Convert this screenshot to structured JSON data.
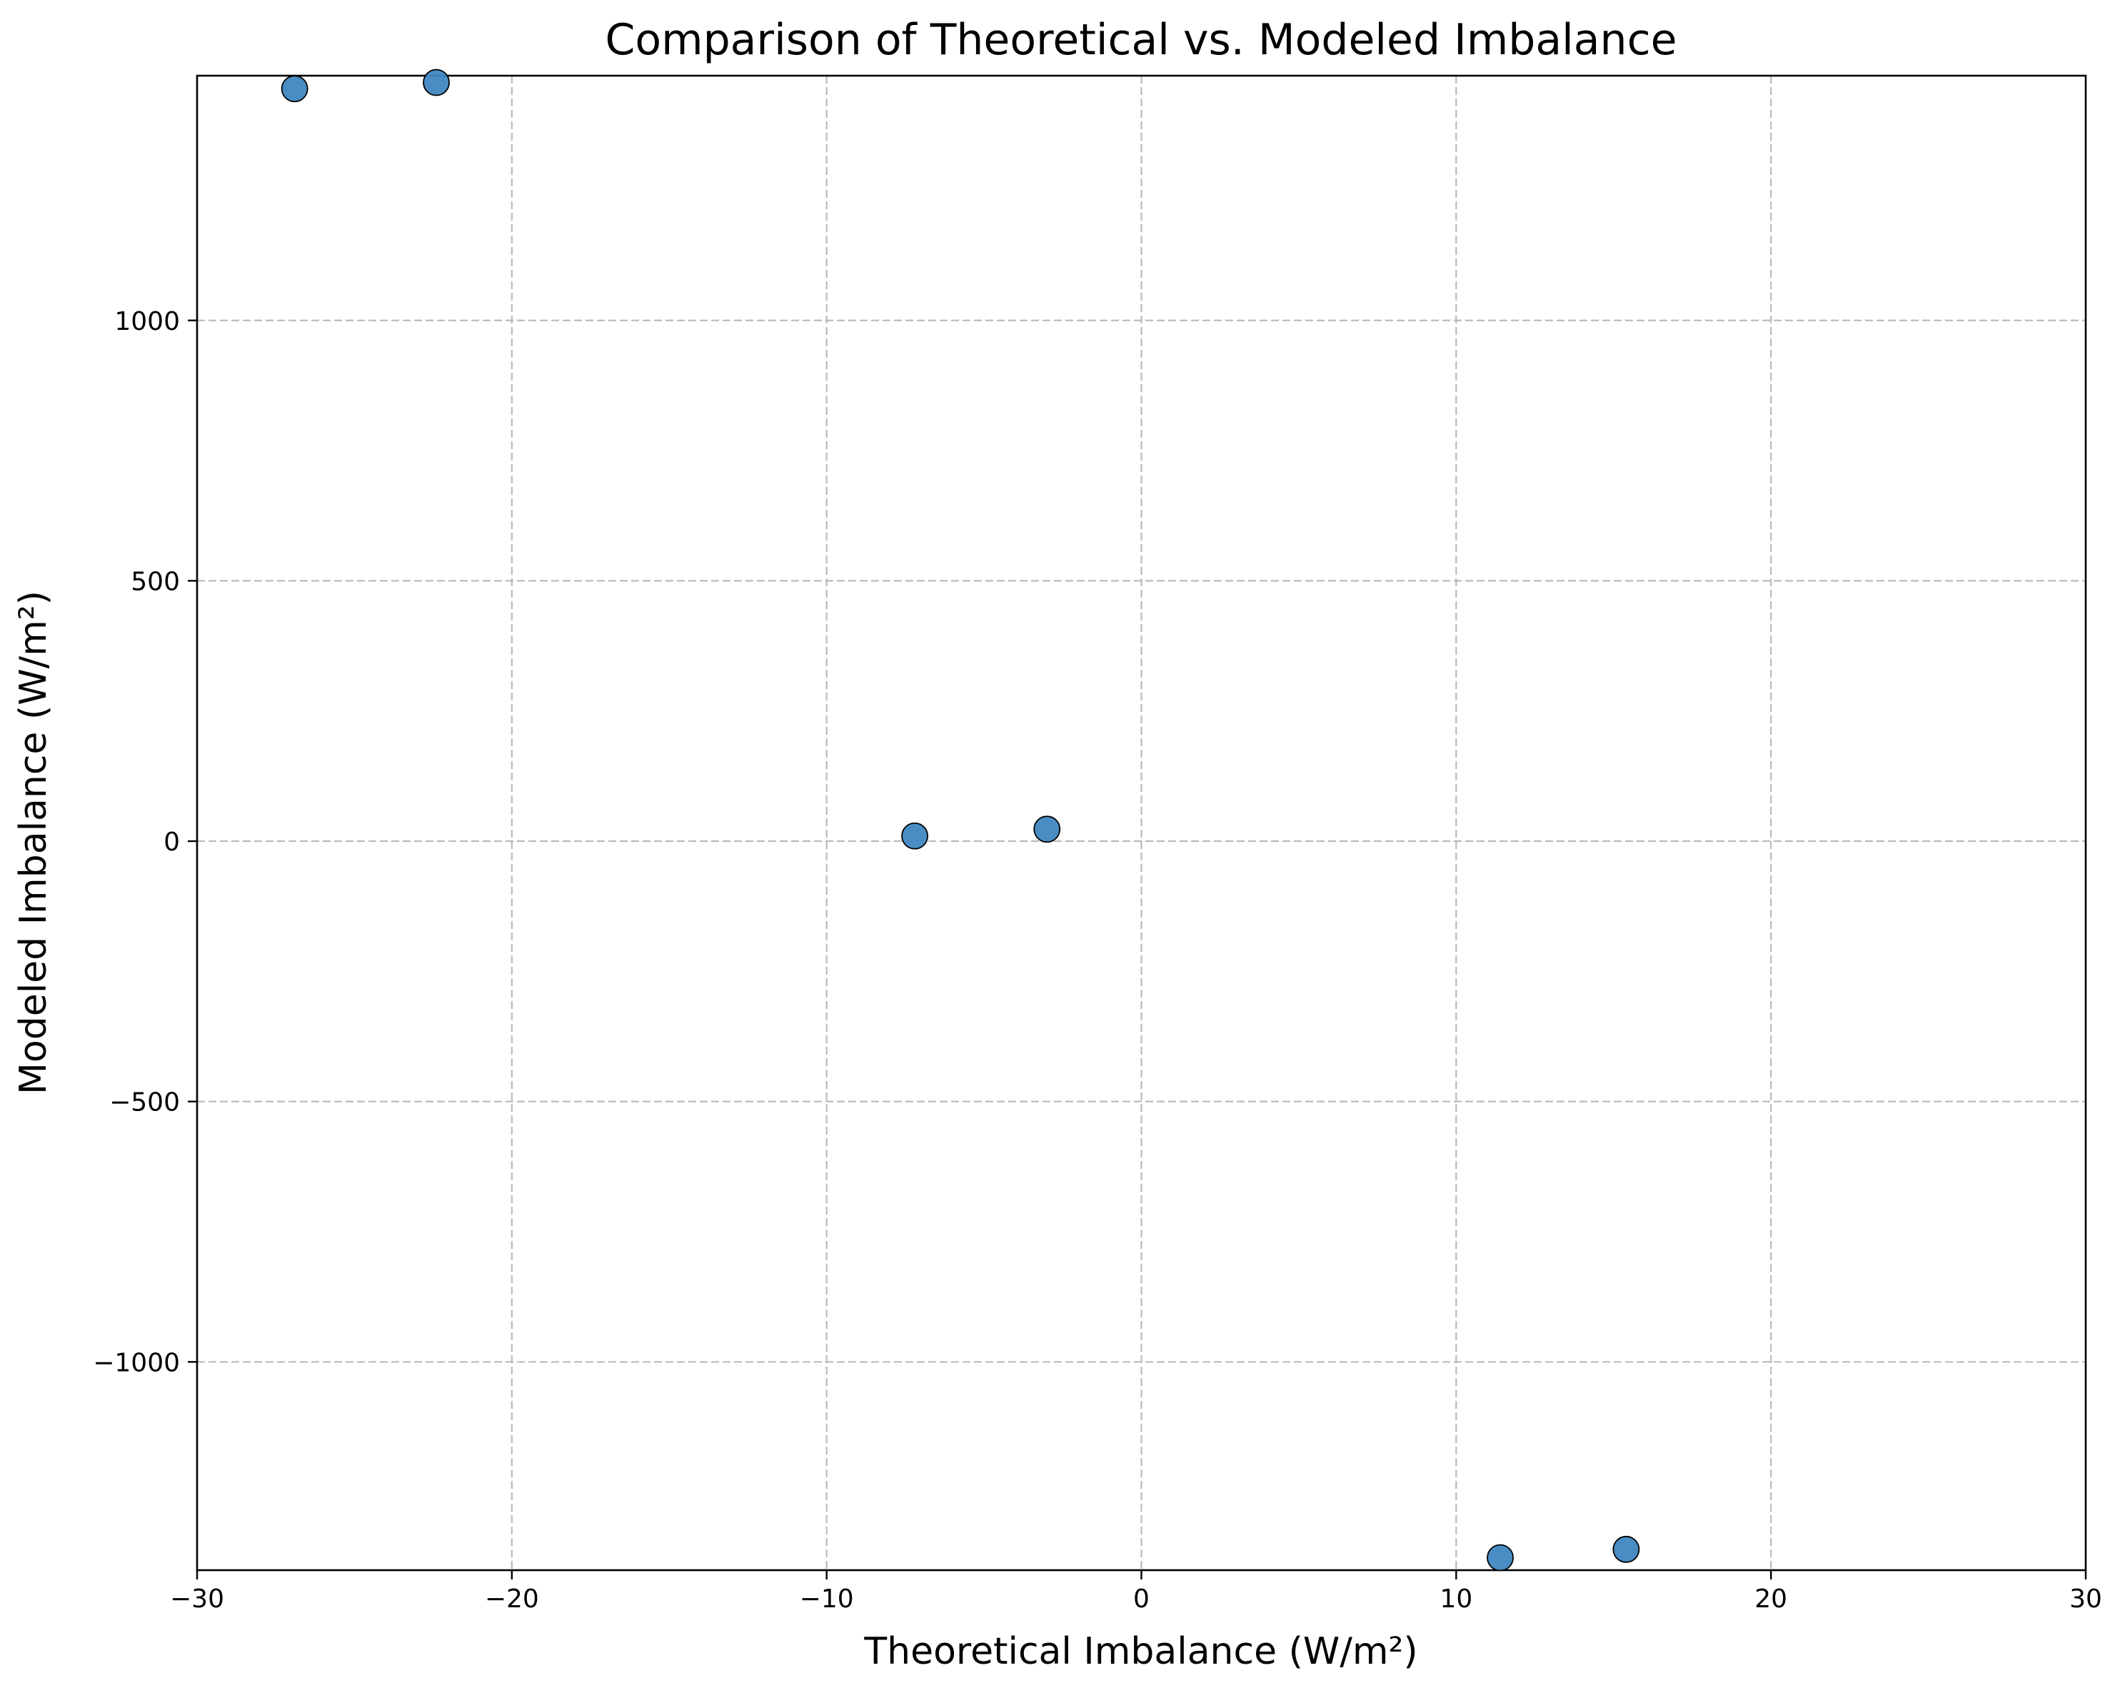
{
  "chart_data": {
    "type": "scatter",
    "title": "Comparison of Theoretical vs. Modeled Imbalance",
    "xlabel": "Theoretical Imbalance (W/m²)",
    "ylabel": "Modeled Imbalance (W/m²)",
    "xlim": [
      -30,
      30
    ],
    "ylim": [
      -1400,
      1470
    ],
    "x_ticks": [
      -30,
      -20,
      -10,
      0,
      10,
      20,
      30
    ],
    "x_tick_labels": [
      "−30",
      "−20",
      "−10",
      "0",
      "10",
      "20",
      "30"
    ],
    "y_ticks": [
      -1000,
      -500,
      0,
      500,
      1000
    ],
    "y_tick_labels": [
      "−1000",
      "−500",
      "0",
      "500",
      "1000"
    ],
    "grid": true,
    "marker_color": "#3f87c1",
    "series": [
      {
        "x": [
          -26.9,
          -22.4,
          -7.2,
          -3.0,
          11.4,
          15.4
        ],
        "y": [
          1445,
          1457,
          10,
          23,
          -1376,
          -1360
        ]
      }
    ]
  }
}
